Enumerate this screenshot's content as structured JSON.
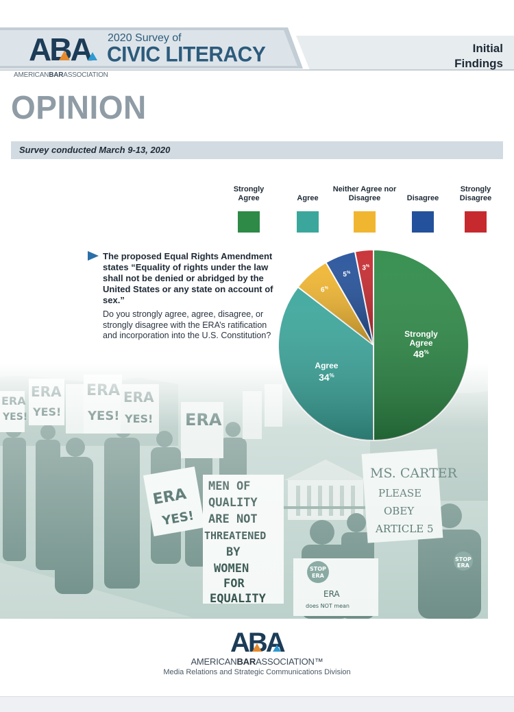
{
  "header": {
    "aba_logo": "ABA",
    "survey_year": "2020 Survey of",
    "title": "CIVIC LITERACY",
    "badge_line1": "Initial",
    "badge_line2": "Findings",
    "assoc_pre": "AMERICAN",
    "assoc_bold": "BAR",
    "assoc_post": "ASSOCIATION"
  },
  "section_title": "OPINION",
  "survey_dates": "Survey conducted March 9-13, 2020",
  "question": {
    "main": "The proposed Equal Rights Amendment states “Equality of rights under the law shall not be denied or abridged by the United States or any state on account of sex.”",
    "sub": "Do you strongly agree, agree, disagree, or strongly disagree with the ERA’s ratification and incorporation into the U.S. Constitution?"
  },
  "legend": [
    {
      "label": "Strongly Agree",
      "color": "#2d8a47"
    },
    {
      "label": "Agree",
      "color": "#3ba79c"
    },
    {
      "label": "Neither Agree nor Disagree",
      "color": "#f1b630"
    },
    {
      "label": "Disagree",
      "color": "#24519b"
    },
    {
      "label": "Strongly Disagree",
      "color": "#c62a2f"
    }
  ],
  "chart_data": {
    "type": "pie",
    "unit": "%",
    "slices": [
      {
        "label": "Strongly Agree",
        "value": 48,
        "color": "#2d8a47"
      },
      {
        "label": "Agree",
        "value": 34,
        "color": "#3ba79c"
      },
      {
        "label": "Neither Agree nor Disagree",
        "value": 6,
        "color": "#f1b630"
      },
      {
        "label": "Disagree",
        "value": 5,
        "color": "#24519b"
      },
      {
        "label": "Strongly Disagree",
        "value": 3,
        "color": "#c62a2f"
      }
    ]
  },
  "photo": {
    "signs": [
      "ERA YES!",
      "ERA YES!",
      "ERA YES!",
      "ERA",
      "MEN OF QUALITY ARE NOT THREATENED BY WOMEN FOR EQUALITY",
      "ERA YES!",
      "MS. CARTER PLEASE OBEY ARTICLE 5",
      "STOP ERA",
      "STOP ERA",
      "ERA does NOT mean equal pay for equal work"
    ]
  },
  "footer": {
    "aba_logo": "ABA",
    "assoc_pre": "AMERICAN",
    "assoc_bold": "BAR",
    "assoc_post": "ASSOCIATION™",
    "division": "Media Relations and Strategic Communications Division"
  }
}
